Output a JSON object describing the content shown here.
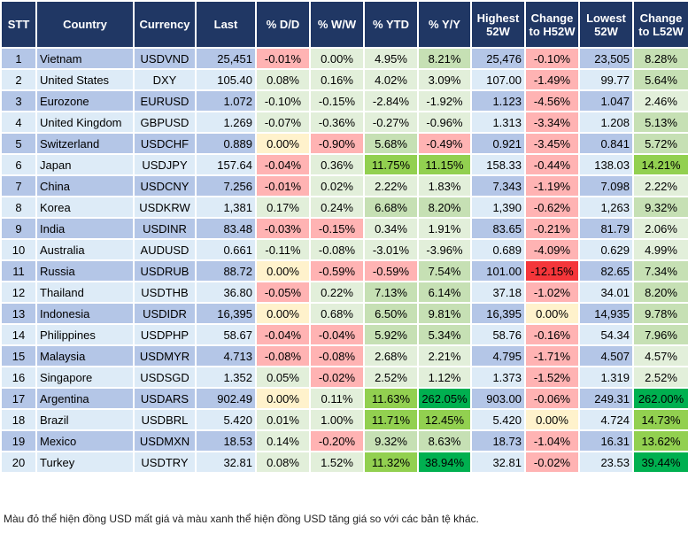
{
  "colors": {
    "header": "#203764",
    "row_odd": "#B4C6E7",
    "row_even": "#DDEBF7",
    "R": "#FFB3B3",
    "RR": "#F4363A",
    "Y": "#FFF2CC",
    "G1": "#E2EFDA",
    "G2": "#C6E0B4",
    "G3": "#92D050",
    "G4": "#00B050"
  },
  "columns": [
    "STT",
    "Country",
    "Currency",
    "Last",
    "% D/D",
    "% W/W",
    "% YTD",
    "% Y/Y",
    "Highest 52W",
    "Change to H52W",
    "Lowest 52W",
    "Change to L52W"
  ],
  "rows": [
    {
      "stt": "1",
      "country": "Vietnam",
      "currency": "USDVND",
      "last": "25,451",
      "dd": "-0.01%",
      "ww": "0.00%",
      "ytd": "4.95%",
      "yy": "8.21%",
      "high": "25,476",
      "ch_high": "-0.10%",
      "low": "23,505",
      "ch_low": "8.28%",
      "tone": [
        "R",
        "G1",
        "G1",
        "G2",
        "R",
        "G2"
      ]
    },
    {
      "stt": "2",
      "country": "United States",
      "currency": "DXY",
      "last": "105.40",
      "dd": "0.08%",
      "ww": "0.16%",
      "ytd": "4.02%",
      "yy": "3.09%",
      "high": "107.00",
      "ch_high": "-1.49%",
      "low": "99.77",
      "ch_low": "5.64%",
      "tone": [
        "G1",
        "G1",
        "G1",
        "G1",
        "R",
        "G2"
      ]
    },
    {
      "stt": "3",
      "country": "Eurozone",
      "currency": "EURUSD",
      "last": "1.072",
      "dd": "-0.10%",
      "ww": "-0.15%",
      "ytd": "-2.84%",
      "yy": "-1.92%",
      "high": "1.123",
      "ch_high": "-4.56%",
      "low": "1.047",
      "ch_low": "2.46%",
      "tone": [
        "G1",
        "G1",
        "G1",
        "G1",
        "R",
        "G1"
      ]
    },
    {
      "stt": "4",
      "country": "United Kingdom",
      "currency": "GBPUSD",
      "last": "1.269",
      "dd": "-0.07%",
      "ww": "-0.36%",
      "ytd": "-0.27%",
      "yy": "-0.96%",
      "high": "1.313",
      "ch_high": "-3.34%",
      "low": "1.208",
      "ch_low": "5.13%",
      "tone": [
        "G1",
        "G1",
        "G1",
        "G1",
        "R",
        "G2"
      ]
    },
    {
      "stt": "5",
      "country": "Switzerland",
      "currency": "USDCHF",
      "last": "0.889",
      "dd": "0.00%",
      "ww": "-0.90%",
      "ytd": "5.68%",
      "yy": "-0.49%",
      "high": "0.921",
      "ch_high": "-3.45%",
      "low": "0.841",
      "ch_low": "5.72%",
      "tone": [
        "Y",
        "R",
        "G2",
        "R",
        "R",
        "G2"
      ]
    },
    {
      "stt": "6",
      "country": "Japan",
      "currency": "USDJPY",
      "last": "157.64",
      "dd": "-0.04%",
      "ww": "0.36%",
      "ytd": "11.75%",
      "yy": "11.15%",
      "high": "158.33",
      "ch_high": "-0.44%",
      "low": "138.03",
      "ch_low": "14.21%",
      "tone": [
        "R",
        "G1",
        "G3",
        "G3",
        "R",
        "G3"
      ]
    },
    {
      "stt": "7",
      "country": "China",
      "currency": "USDCNY",
      "last": "7.256",
      "dd": "-0.01%",
      "ww": "0.02%",
      "ytd": "2.22%",
      "yy": "1.83%",
      "high": "7.343",
      "ch_high": "-1.19%",
      "low": "7.098",
      "ch_low": "2.22%",
      "tone": [
        "R",
        "G1",
        "G1",
        "G1",
        "R",
        "G1"
      ]
    },
    {
      "stt": "8",
      "country": "Korea",
      "currency": "USDKRW",
      "last": "1,381",
      "dd": "0.17%",
      "ww": "0.24%",
      "ytd": "6.68%",
      "yy": "8.20%",
      "high": "1,390",
      "ch_high": "-0.62%",
      "low": "1,263",
      "ch_low": "9.32%",
      "tone": [
        "G1",
        "G1",
        "G2",
        "G2",
        "R",
        "G2"
      ]
    },
    {
      "stt": "9",
      "country": "India",
      "currency": "USDINR",
      "last": "83.48",
      "dd": "-0.03%",
      "ww": "-0.15%",
      "ytd": "0.34%",
      "yy": "1.91%",
      "high": "83.65",
      "ch_high": "-0.21%",
      "low": "81.79",
      "ch_low": "2.06%",
      "tone": [
        "R",
        "R",
        "G1",
        "G1",
        "R",
        "G1"
      ]
    },
    {
      "stt": "10",
      "country": "Australia",
      "currency": "AUDUSD",
      "last": "0.661",
      "dd": "-0.11%",
      "ww": "-0.08%",
      "ytd": "-3.01%",
      "yy": "-3.96%",
      "high": "0.689",
      "ch_high": "-4.09%",
      "low": "0.629",
      "ch_low": "4.99%",
      "tone": [
        "G1",
        "G1",
        "G1",
        "G1",
        "R",
        "G1"
      ]
    },
    {
      "stt": "11",
      "country": "Russia",
      "currency": "USDRUB",
      "last": "88.72",
      "dd": "0.00%",
      "ww": "-0.59%",
      "ytd": "-0.59%",
      "yy": "7.54%",
      "high": "101.00",
      "ch_high": "-12.15%",
      "low": "82.65",
      "ch_low": "7.34%",
      "tone": [
        "Y",
        "R",
        "R",
        "G2",
        "RR",
        "G2"
      ]
    },
    {
      "stt": "12",
      "country": "Thailand",
      "currency": "USDTHB",
      "last": "36.80",
      "dd": "-0.05%",
      "ww": "0.22%",
      "ytd": "7.13%",
      "yy": "6.14%",
      "high": "37.18",
      "ch_high": "-1.02%",
      "low": "34.01",
      "ch_low": "8.20%",
      "tone": [
        "R",
        "G1",
        "G2",
        "G2",
        "R",
        "G2"
      ]
    },
    {
      "stt": "13",
      "country": "Indonesia",
      "currency": "USDIDR",
      "last": "16,395",
      "dd": "0.00%",
      "ww": "0.68%",
      "ytd": "6.50%",
      "yy": "9.81%",
      "high": "16,395",
      "ch_high": "0.00%",
      "low": "14,935",
      "ch_low": "9.78%",
      "tone": [
        "Y",
        "G1",
        "G2",
        "G2",
        "Y",
        "G2"
      ]
    },
    {
      "stt": "14",
      "country": "Philippines",
      "currency": "USDPHP",
      "last": "58.67",
      "dd": "-0.04%",
      "ww": "-0.04%",
      "ytd": "5.92%",
      "yy": "5.34%",
      "high": "58.76",
      "ch_high": "-0.16%",
      "low": "54.34",
      "ch_low": "7.96%",
      "tone": [
        "R",
        "R",
        "G2",
        "G2",
        "R",
        "G2"
      ]
    },
    {
      "stt": "15",
      "country": "Malaysia",
      "currency": "USDMYR",
      "last": "4.713",
      "dd": "-0.08%",
      "ww": "-0.08%",
      "ytd": "2.68%",
      "yy": "2.21%",
      "high": "4.795",
      "ch_high": "-1.71%",
      "low": "4.507",
      "ch_low": "4.57%",
      "tone": [
        "R",
        "R",
        "G1",
        "G1",
        "R",
        "G1"
      ]
    },
    {
      "stt": "16",
      "country": "Singapore",
      "currency": "USDSGD",
      "last": "1.352",
      "dd": "0.05%",
      "ww": "-0.02%",
      "ytd": "2.52%",
      "yy": "1.12%",
      "high": "1.373",
      "ch_high": "-1.52%",
      "low": "1.319",
      "ch_low": "2.52%",
      "tone": [
        "G1",
        "R",
        "G1",
        "G1",
        "R",
        "G1"
      ]
    },
    {
      "stt": "17",
      "country": "Argentina",
      "currency": "USDARS",
      "last": "902.49",
      "dd": "0.00%",
      "ww": "0.11%",
      "ytd": "11.63%",
      "yy": "262.05%",
      "high": "903.00",
      "ch_high": "-0.06%",
      "low": "249.31",
      "ch_low": "262.00%",
      "tone": [
        "Y",
        "G1",
        "G3",
        "G4",
        "R",
        "G4"
      ]
    },
    {
      "stt": "18",
      "country": "Brazil",
      "currency": "USDBRL",
      "last": "5.420",
      "dd": "0.01%",
      "ww": "1.00%",
      "ytd": "11.71%",
      "yy": "12.45%",
      "high": "5.420",
      "ch_high": "0.00%",
      "low": "4.724",
      "ch_low": "14.73%",
      "tone": [
        "G1",
        "G1",
        "G3",
        "G3",
        "Y",
        "G3"
      ]
    },
    {
      "stt": "19",
      "country": "Mexico",
      "currency": "USDMXN",
      "last": "18.53",
      "dd": "0.14%",
      "ww": "-0.20%",
      "ytd": "9.32%",
      "yy": "8.63%",
      "high": "18.73",
      "ch_high": "-1.04%",
      "low": "16.31",
      "ch_low": "13.62%",
      "tone": [
        "G1",
        "R",
        "G2",
        "G2",
        "R",
        "G3"
      ]
    },
    {
      "stt": "20",
      "country": "Turkey",
      "currency": "USDTRY",
      "last": "32.81",
      "dd": "0.08%",
      "ww": "1.52%",
      "ytd": "11.32%",
      "yy": "38.94%",
      "high": "32.81",
      "ch_high": "-0.02%",
      "low": "23.53",
      "ch_low": "39.44%",
      "tone": [
        "G1",
        "G1",
        "G3",
        "G4",
        "R",
        "G4"
      ]
    }
  ],
  "footer": "Màu đỏ thể hiện đồng USD mất giá và màu xanh thể hiện đồng USD tăng giá so với các bản tệ khác."
}
